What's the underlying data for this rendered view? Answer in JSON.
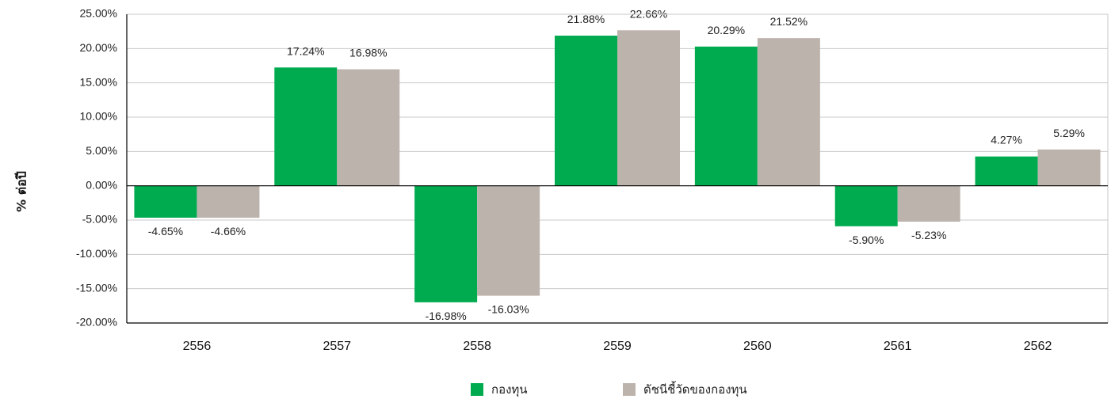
{
  "chart_data": {
    "type": "bar",
    "ylabel": "% ต่อปี",
    "categories": [
      "2556",
      "2557",
      "2558",
      "2559",
      "2560",
      "2561",
      "2562"
    ],
    "series": [
      {
        "name": "กองทุน",
        "color": "#00AA4F",
        "values": [
          -4.65,
          17.24,
          -16.98,
          21.88,
          20.29,
          -5.9,
          4.27
        ],
        "labels": [
          "-4.65%",
          "17.24%",
          "-16.98%",
          "21.88%",
          "20.29%",
          "-5.90%",
          "4.27%"
        ]
      },
      {
        "name": "ดัชนีชี้วัดของกองทุน",
        "color": "#BDB3AD",
        "values": [
          -4.66,
          16.98,
          -16.03,
          22.66,
          21.52,
          -5.23,
          5.29
        ],
        "labels": [
          "-4.66%",
          "16.98%",
          "-16.03%",
          "22.66%",
          "21.52%",
          "-5.23%",
          "5.29%"
        ]
      }
    ],
    "ylim": [
      -20,
      25
    ],
    "yticks": [
      25,
      20,
      15,
      10,
      5,
      0,
      -5,
      -10,
      -15,
      -20
    ],
    "ytick_labels": [
      "25.00%",
      "20.00%",
      "15.00%",
      "10.00%",
      "5.00%",
      "0.00%",
      "-5.00%",
      "-10.00%",
      "-15.00%",
      "-20.00%"
    ],
    "grid": true,
    "legend_position": "bottom"
  }
}
